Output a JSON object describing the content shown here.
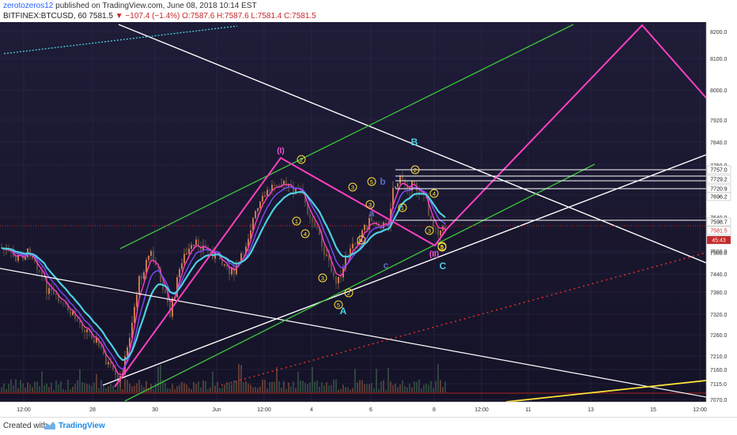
{
  "header": {
    "author": "zerotozeros12",
    "published": " published on TradingView.com, June 08, 2018 10:14 EST",
    "symbol": "BITFINEX:BTCUSD, 60",
    "last": "7581.5",
    "change": "−107.4 (−1.4%)",
    "ohlc": "O:7587.6 H:7587.6 L:7581.4 C:7581.5"
  },
  "footer": {
    "created": "Created with",
    "brand": "TradingView"
  },
  "chart_data": {
    "type": "candlestick",
    "y_ticks": [
      "8200.0",
      "8100.0",
      "8000.0",
      "7920.0",
      "7840.0",
      "7760.0",
      "7696.2",
      "7640.0",
      "7580.0",
      "7500.0",
      "7440.0",
      "7380.0",
      "7320.0",
      "7260.0",
      "7210.0",
      "7160.0",
      "7115.0",
      "7070.0"
    ],
    "x_ticks": [
      "12:00",
      "28",
      "30",
      "Jun",
      "12:00",
      "4",
      "6",
      "8",
      "12:00",
      "11",
      "13",
      "15",
      "12:00"
    ],
    "price_tags": [
      {
        "label": "7757.0",
        "color": "#ffffff",
        "text": "#111"
      },
      {
        "label": "7729.2",
        "color": "#ffffff",
        "text": "#111"
      },
      {
        "label": "7720.9",
        "color": "#ffffff",
        "text": "#111"
      },
      {
        "label": "7696.2",
        "color": "#ffffff",
        "text": "#111"
      },
      {
        "label": "7598.7",
        "color": "#ffffff",
        "text": "#111"
      },
      {
        "label": "7581.5",
        "color": "#ffffff",
        "text": "#c62828"
      },
      {
        "label": "45:43",
        "color": "#c62828",
        "text": "#ffffff"
      }
    ],
    "wave_labels": [
      {
        "t": "(I)",
        "c": "#ff4fd8"
      },
      {
        "t": "(II)",
        "c": "#ff4fd8"
      },
      {
        "t": "A",
        "c": "#4dd0e1"
      },
      {
        "t": "B",
        "c": "#4dd0e1"
      },
      {
        "t": "C",
        "c": "#4dd0e1"
      },
      {
        "t": "a",
        "c": "#5c6bc0"
      },
      {
        "t": "b",
        "c": "#5c6bc0"
      },
      {
        "t": "c",
        "c": "#5c6bc0"
      }
    ],
    "circled": [
      "2",
      "1",
      "4",
      "3",
      "5",
      "2",
      "3",
      "5",
      "4",
      "3",
      "5",
      "1",
      "2",
      "4",
      "3",
      "5"
    ]
  }
}
